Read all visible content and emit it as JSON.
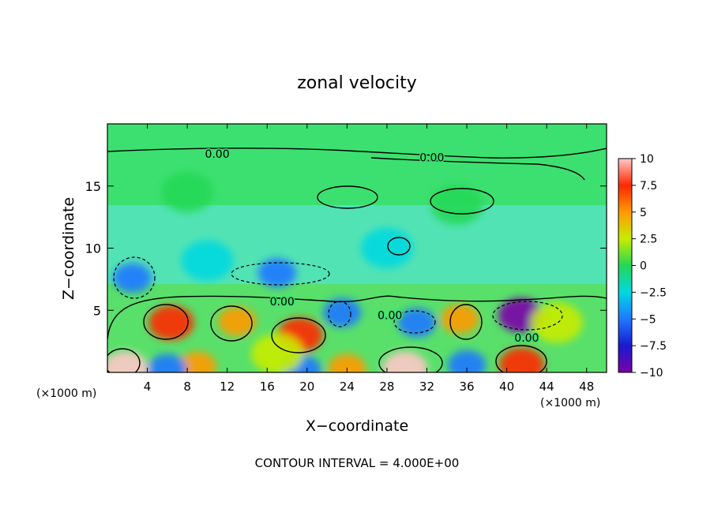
{
  "chart_data": {
    "type": "heatmap",
    "title": "zonal velocity",
    "xlabel": "X−coordinate",
    "ylabel": "Z−coordinate",
    "x_unit_left": "(×1000 m)",
    "x_unit_right": "(×1000 m)",
    "footer": "CONTOUR INTERVAL = 4.000E+00",
    "xlim": [
      0,
      50
    ],
    "ylim": [
      0,
      20
    ],
    "x_ticks": [
      4,
      8,
      12,
      16,
      20,
      24,
      28,
      32,
      36,
      40,
      44,
      48
    ],
    "y_ticks": [
      5,
      10,
      15
    ],
    "colorbar": {
      "range": [
        -10,
        10
      ],
      "tick_values": [
        10,
        7.5,
        5,
        2.5,
        0,
        -2.5,
        -5,
        -7.5,
        -10
      ],
      "tick_labels": [
        "10",
        "7.5",
        "5",
        "2.5",
        "0",
        "−2.5",
        "−5",
        "−7.5",
        "−10"
      ],
      "colors": [
        "#7a00a8",
        "#1a1ad0",
        "#1e78ff",
        "#00d8e0",
        "#22d855",
        "#c8ec00",
        "#ff9a00",
        "#ff2800",
        "#ffc8c8"
      ]
    },
    "contour_labels": [
      {
        "text": "0.00",
        "x": 11,
        "z": 17.6
      },
      {
        "text": "0.00",
        "x": 32.5,
        "z": 17.3
      },
      {
        "text": "0.00",
        "x": 17.5,
        "z": 5.7
      },
      {
        "text": "0.00",
        "x": 28.3,
        "z": 4.6
      },
      {
        "text": "0.00",
        "x": 42,
        "z": 2.8
      }
    ],
    "features": [
      {
        "x": 1.8,
        "z": 0.3,
        "value": 10
      },
      {
        "x": 6.4,
        "z": 4.0,
        "value": 8
      },
      {
        "x": 13.0,
        "z": 4.1,
        "value": 6
      },
      {
        "x": 19.3,
        "z": 3.0,
        "value": 8
      },
      {
        "x": 29.8,
        "z": 0.3,
        "value": 10
      },
      {
        "x": 35.3,
        "z": 4.3,
        "value": 6
      },
      {
        "x": 41.5,
        "z": 0.6,
        "value": 8
      },
      {
        "x": 41.4,
        "z": 4.6,
        "value": -10
      },
      {
        "x": 31.0,
        "z": 4.0,
        "value": -6
      },
      {
        "x": 23.5,
        "z": 4.8,
        "value": -5
      },
      {
        "x": 17.0,
        "z": 8.0,
        "value": -5
      },
      {
        "x": 2.5,
        "z": 7.6,
        "value": -5
      },
      {
        "x": 9.0,
        "z": 0.5,
        "value": 6
      },
      {
        "x": 24.0,
        "z": 0.3,
        "value": 6
      },
      {
        "x": 19.5,
        "z": 0.2,
        "value": -5
      },
      {
        "x": 36.0,
        "z": 0.6,
        "value": -4
      },
      {
        "x": 6.0,
        "z": 0.3,
        "value": -4
      },
      {
        "x": 10.0,
        "z": 9.0,
        "value": -2.5
      },
      {
        "x": 28.0,
        "z": 10.0,
        "value": -2
      },
      {
        "x": 17.0,
        "z": 1.5,
        "value": 2.5
      },
      {
        "x": 45.0,
        "z": 4.0,
        "value": 2
      },
      {
        "x": 8.0,
        "z": 14.5,
        "value": -1.2
      },
      {
        "x": 35.0,
        "z": 13.5,
        "value": -1.2
      }
    ]
  }
}
